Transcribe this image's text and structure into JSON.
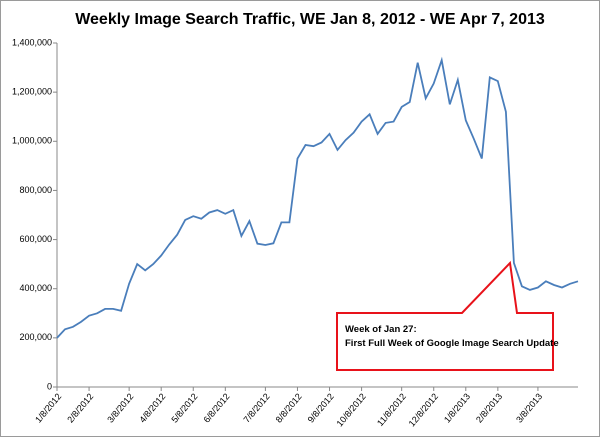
{
  "chart_data": {
    "type": "line",
    "title": "Weekly Image Search Traffic, WE Jan 8, 2012 - WE Apr 7, 2013",
    "categories": [
      "1/8/2012",
      null,
      null,
      null,
      "2/8/2012",
      null,
      null,
      null,
      null,
      "3/8/2012",
      null,
      null,
      null,
      "4/8/2012",
      null,
      null,
      null,
      "5/8/2012",
      null,
      null,
      null,
      "6/8/2012",
      null,
      null,
      null,
      null,
      "7/8/2012",
      null,
      null,
      null,
      "8/8/2012",
      null,
      null,
      null,
      "9/8/2012",
      null,
      null,
      null,
      "10/8/2012",
      null,
      null,
      null,
      null,
      "11/8/2012",
      null,
      null,
      null,
      "12/8/2012",
      null,
      null,
      null,
      "1/8/2013",
      null,
      null,
      null,
      "2/8/2013",
      null,
      null,
      null,
      null,
      "3/8/2013",
      null,
      null,
      null,
      null,
      null
    ],
    "series": [
      {
        "name": "Weekly Image Search Traffic",
        "color": "#4a7ebb",
        "values": [
          200000,
          235000,
          245000,
          265000,
          290000,
          300000,
          318000,
          318000,
          310000,
          420000,
          500000,
          475000,
          500000,
          535000,
          580000,
          620000,
          680000,
          695000,
          685000,
          710000,
          720000,
          705000,
          720000,
          615000,
          675000,
          583000,
          578000,
          585000,
          670000,
          670000,
          930000,
          985000,
          980000,
          995000,
          1030000,
          965000,
          1005000,
          1035000,
          1080000,
          1110000,
          1030000,
          1075000,
          1080000,
          1140000,
          1160000,
          1320000,
          1175000,
          1235000,
          1330000,
          1150000,
          1250000,
          1085000,
          1010000,
          930000,
          1260000,
          1245000,
          1120000,
          505000,
          410000,
          395000,
          405000,
          430000,
          415000,
          405000,
          420000,
          430000
        ]
      }
    ],
    "ylim": [
      0,
      1400000
    ],
    "yticks": [
      0,
      {
        "value": 200000,
        "label": "200,000"
      },
      {
        "value": 400000,
        "label": "400,000"
      },
      {
        "value": 600000,
        "label": "600,000"
      },
      {
        "value": 800000,
        "label": "800,000"
      },
      {
        "value": 1000000,
        "label": "1,000,000"
      },
      {
        "value": 1200000,
        "label": "1,200,000"
      },
      {
        "value": 1400000,
        "label": "1,400,000"
      }
    ],
    "grid": false,
    "annotation": [
      "Week of Jan  27:",
      "First Full Week of Google Image Search Update"
    ]
  }
}
